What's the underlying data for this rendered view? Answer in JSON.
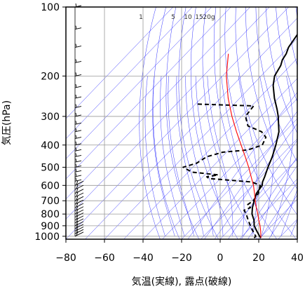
{
  "chart_data": {
    "type": "line",
    "chart_kind": "skew-T log-P thermodynamic diagram",
    "title": "",
    "xlabel": "気温(実線), 露点(破線)",
    "ylabel": "気圧(hPa)",
    "xlim": [
      -80,
      40
    ],
    "ylim": [
      1030,
      100
    ],
    "y_scale": "log",
    "x_ticks": [
      -80,
      -60,
      -40,
      -20,
      0,
      20,
      40
    ],
    "y_ticks": [
      100,
      200,
      300,
      400,
      500,
      600,
      700,
      800,
      900,
      1000
    ],
    "y_tick_labels": [
      "100",
      "200",
      "300",
      "400",
      "500",
      "600",
      "700",
      "800",
      "900",
      "1000"
    ],
    "mixing_ratio_labels": [
      "1",
      "5",
      "10",
      "15",
      "20g"
    ],
    "grid": true,
    "colors": {
      "temperature": "#000000",
      "dewpoint": "#000000",
      "parcel": "#ff0000",
      "background_lines": "#3333ff",
      "grid": "#999999"
    },
    "series": [
      {
        "key": "temperature",
        "style": "solid",
        "points": [
          [
            1017,
            20.5
          ],
          [
            1000,
            19
          ],
          [
            950,
            15
          ],
          [
            900,
            11
          ],
          [
            850,
            8
          ],
          [
            800,
            4
          ],
          [
            750,
            1
          ],
          [
            700,
            -1.5
          ],
          [
            650,
            -4
          ],
          [
            600,
            -5
          ],
          [
            580,
            -6.5
          ],
          [
            550,
            -8
          ],
          [
            500,
            -11
          ],
          [
            450,
            -14
          ],
          [
            400,
            -18
          ],
          [
            350,
            -23
          ],
          [
            300,
            -31
          ],
          [
            280,
            -35
          ],
          [
            250,
            -42
          ],
          [
            220,
            -49
          ],
          [
            200,
            -53
          ],
          [
            180,
            -55
          ],
          [
            170,
            -57
          ],
          [
            160,
            -58
          ],
          [
            150,
            -60
          ],
          [
            140,
            -61
          ],
          [
            130,
            -62
          ],
          [
            120,
            -63
          ],
          [
            110,
            -65
          ],
          [
            100,
            -66
          ]
        ]
      },
      {
        "key": "dewpoint",
        "style": "dashed",
        "points": [
          [
            1017,
            17
          ],
          [
            1000,
            17
          ],
          [
            950,
            13
          ],
          [
            900,
            9
          ],
          [
            850,
            5
          ],
          [
            800,
            1
          ],
          [
            770,
            -2
          ],
          [
            750,
            0
          ],
          [
            730,
            -3
          ],
          [
            700,
            -2
          ],
          [
            650,
            -3
          ],
          [
            600,
            -6
          ],
          [
            580,
            -12
          ],
          [
            560,
            -36
          ],
          [
            550,
            -38
          ],
          [
            540,
            -33
          ],
          [
            525,
            -48
          ],
          [
            500,
            -55
          ],
          [
            480,
            -50
          ],
          [
            450,
            -48
          ],
          [
            430,
            -42
          ],
          [
            420,
            -30
          ],
          [
            400,
            -25
          ],
          [
            370,
            -27
          ],
          [
            350,
            -32
          ],
          [
            330,
            -42
          ],
          [
            300,
            -48
          ],
          [
            270,
            -49
          ],
          [
            265,
            -80
          ]
        ]
      },
      {
        "key": "parcel",
        "style": "solid",
        "points": [
          [
            1017,
            20.5
          ],
          [
            950,
            17
          ],
          [
            900,
            14
          ],
          [
            850,
            10.5
          ],
          [
            800,
            7
          ],
          [
            750,
            3
          ],
          [
            700,
            -1
          ],
          [
            650,
            -5
          ],
          [
            600,
            -9.5
          ],
          [
            550,
            -15
          ],
          [
            500,
            -21
          ],
          [
            450,
            -28
          ],
          [
            400,
            -36
          ],
          [
            350,
            -45
          ],
          [
            300,
            -55
          ],
          [
            250,
            -66
          ],
          [
            200,
            -78
          ],
          [
            160,
            -88
          ]
        ]
      }
    ]
  }
}
